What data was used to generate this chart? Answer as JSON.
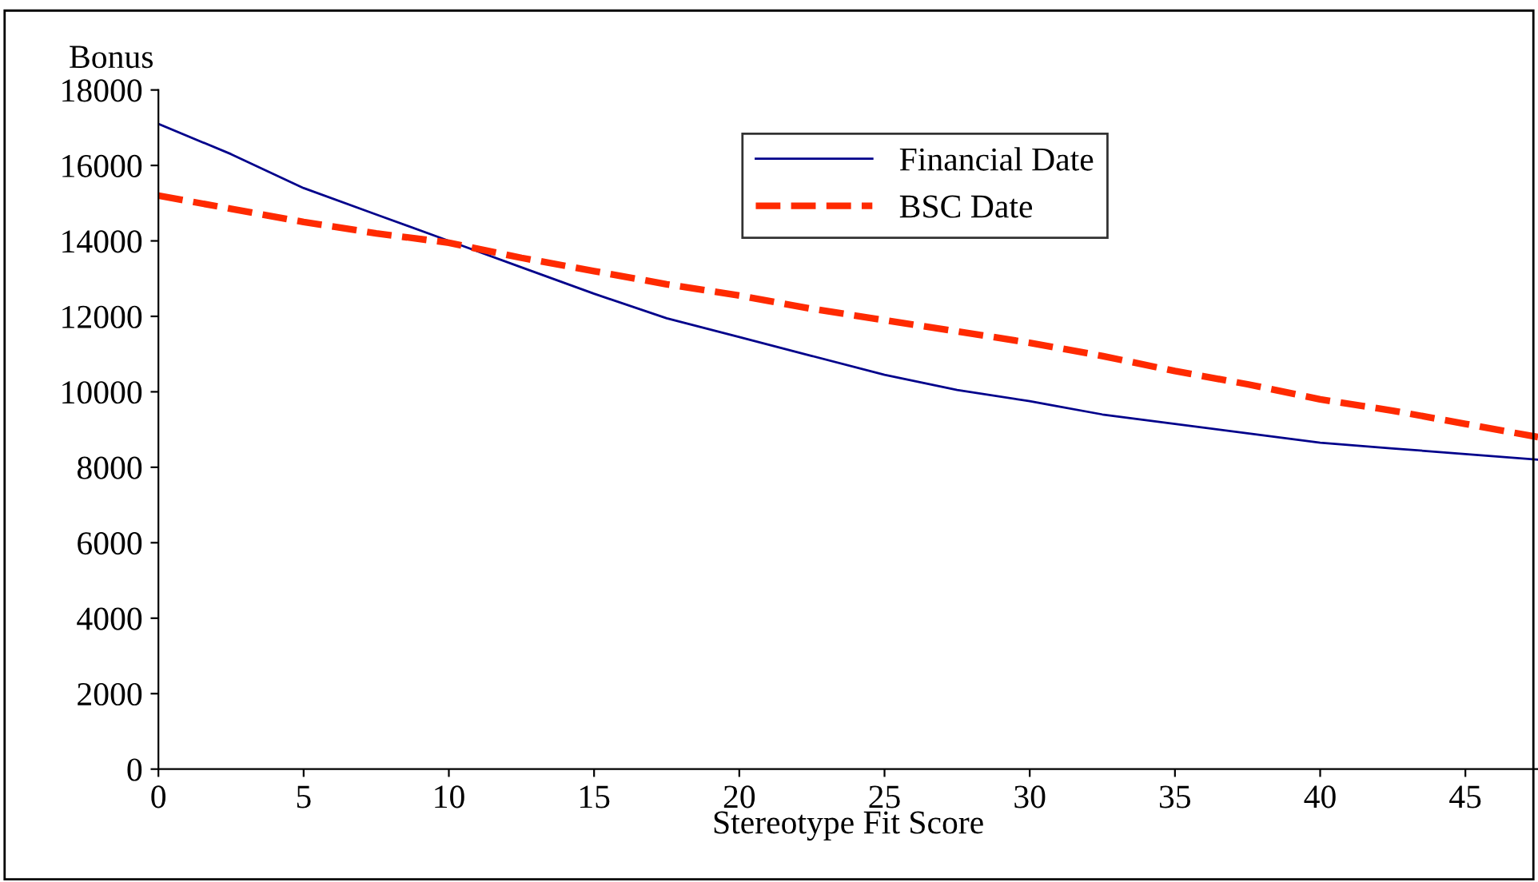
{
  "chart_data": {
    "type": "line",
    "ylabel": "Bonus",
    "xlabel": "Stereotype Fit Score",
    "x": [
      0,
      2.5,
      5,
      7.5,
      10,
      12.5,
      15,
      17.5,
      20,
      22.5,
      25,
      27.5,
      30,
      32.5,
      35,
      37.5,
      40,
      42.5,
      45,
      47.5
    ],
    "series": [
      {
        "name": "Financial Date",
        "color": "#00008b",
        "line_style": "solid",
        "values": [
          17100,
          16300,
          15400,
          14700,
          14000,
          13300,
          12600,
          11950,
          11450,
          10950,
          10450,
          10050,
          9750,
          9400,
          9150,
          8900,
          8650,
          8500,
          8350,
          8200
        ]
      },
      {
        "name": "BSC Date",
        "color": "#ff2a00",
        "line_style": "dashed",
        "values": [
          15200,
          14850,
          14500,
          14200,
          13950,
          13550,
          13200,
          12850,
          12550,
          12200,
          11900,
          11600,
          11300,
          10950,
          10550,
          10200,
          9800,
          9500,
          9150,
          8800
        ]
      }
    ],
    "xlim": [
      0,
      47.5
    ],
    "xticks": [
      0,
      5,
      10,
      15,
      20,
      25,
      30,
      35,
      40,
      45
    ],
    "ylim": [
      0,
      18000
    ],
    "yticks": [
      0,
      2000,
      4000,
      6000,
      8000,
      10000,
      12000,
      14000,
      16000,
      18000
    ],
    "grid": false,
    "legend": "top right",
    "marker": "none"
  }
}
